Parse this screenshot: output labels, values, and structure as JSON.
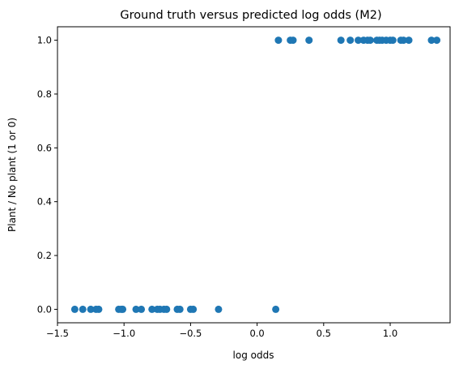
{
  "chart_data": {
    "type": "scatter",
    "title": "Ground truth versus predicted log odds (M2)",
    "xlabel": "log odds",
    "ylabel": "Plant / No plant (1 or 0)",
    "xlim": [
      -1.5,
      1.45
    ],
    "ylim": [
      -0.05,
      1.05
    ],
    "xticks": [
      -1.5,
      -1.0,
      -0.5,
      0.0,
      0.5,
      1.0
    ],
    "xtick_labels": [
      "−1.5",
      "−1.0",
      "−0.5",
      "0.0",
      "0.5",
      "1.0"
    ],
    "yticks": [
      0.0,
      0.2,
      0.4,
      0.6,
      0.8,
      1.0
    ],
    "ytick_labels": [
      "0.0",
      "0.2",
      "0.4",
      "0.6",
      "0.8",
      "1.0"
    ],
    "grid": false,
    "marker_color": "#1f77b4",
    "points": [
      {
        "x": -1.37,
        "y": 0
      },
      {
        "x": -1.31,
        "y": 0
      },
      {
        "x": -1.25,
        "y": 0
      },
      {
        "x": -1.21,
        "y": 0
      },
      {
        "x": -1.19,
        "y": 0
      },
      {
        "x": -1.04,
        "y": 0
      },
      {
        "x": -1.02,
        "y": 0
      },
      {
        "x": -1.01,
        "y": 0
      },
      {
        "x": -0.91,
        "y": 0
      },
      {
        "x": -0.87,
        "y": 0
      },
      {
        "x": -0.79,
        "y": 0
      },
      {
        "x": -0.75,
        "y": 0
      },
      {
        "x": -0.73,
        "y": 0
      },
      {
        "x": -0.7,
        "y": 0
      },
      {
        "x": -0.68,
        "y": 0
      },
      {
        "x": -0.6,
        "y": 0
      },
      {
        "x": -0.58,
        "y": 0
      },
      {
        "x": -0.5,
        "y": 0
      },
      {
        "x": -0.48,
        "y": 0
      },
      {
        "x": -0.29,
        "y": 0
      },
      {
        "x": 0.14,
        "y": 0
      },
      {
        "x": 0.16,
        "y": 1
      },
      {
        "x": 0.25,
        "y": 1
      },
      {
        "x": 0.27,
        "y": 1
      },
      {
        "x": 0.39,
        "y": 1
      },
      {
        "x": 0.63,
        "y": 1
      },
      {
        "x": 0.7,
        "y": 1
      },
      {
        "x": 0.76,
        "y": 1
      },
      {
        "x": 0.8,
        "y": 1
      },
      {
        "x": 0.83,
        "y": 1
      },
      {
        "x": 0.85,
        "y": 1
      },
      {
        "x": 0.9,
        "y": 1
      },
      {
        "x": 0.92,
        "y": 1
      },
      {
        "x": 0.94,
        "y": 1
      },
      {
        "x": 0.97,
        "y": 1
      },
      {
        "x": 1.0,
        "y": 1
      },
      {
        "x": 1.02,
        "y": 1
      },
      {
        "x": 1.08,
        "y": 1
      },
      {
        "x": 1.1,
        "y": 1
      },
      {
        "x": 1.14,
        "y": 1
      },
      {
        "x": 1.31,
        "y": 1
      },
      {
        "x": 1.35,
        "y": 1
      }
    ]
  }
}
